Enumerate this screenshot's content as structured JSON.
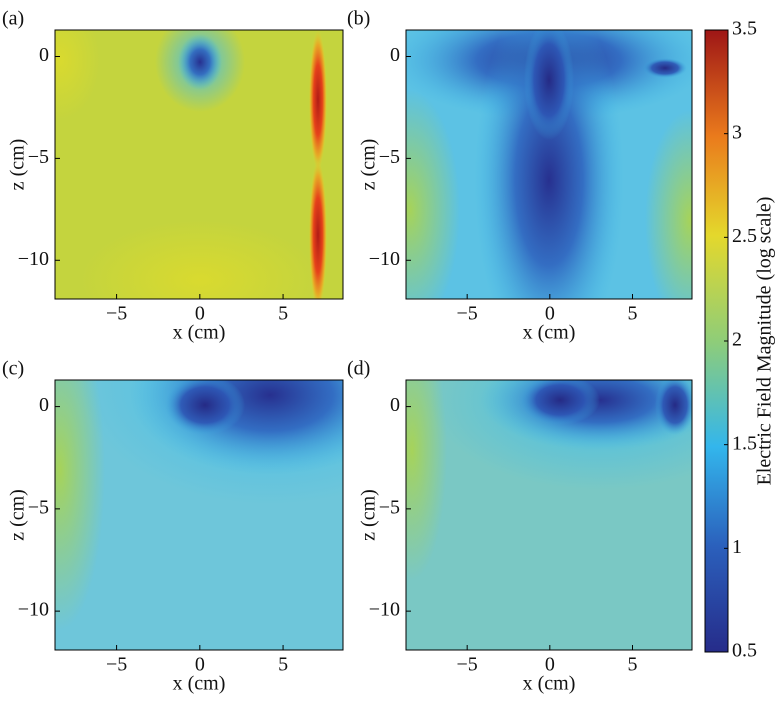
{
  "chart_data": [
    {
      "type": "contour",
      "panel_label": "(a)",
      "xlabel": "x (cm)",
      "ylabel": "z (cm)",
      "xlim": [
        -8.7,
        8.6
      ],
      "ylim": [
        -11.9,
        1.3
      ],
      "xticks": [
        {
          "value": -5,
          "label": "−5"
        },
        0,
        5
      ],
      "yticks": [
        0,
        {
          "value": -5,
          "label": "−5"
        },
        {
          "value": -10,
          "label": "−10"
        }
      ]
    },
    {
      "type": "contour",
      "panel_label": "(b)",
      "xlabel": "x (cm)",
      "ylabel": "z (cm)",
      "xlim": [
        -8.7,
        8.6
      ],
      "ylim": [
        -11.9,
        1.3
      ],
      "xticks": [
        {
          "value": -5,
          "label": "−5"
        },
        0,
        5
      ],
      "yticks": [
        0,
        {
          "value": -5,
          "label": "−5"
        },
        {
          "value": -10,
          "label": "−10"
        }
      ]
    },
    {
      "type": "contour",
      "panel_label": "(c)",
      "xlabel": "x (cm)",
      "ylabel": "z (cm)",
      "xlim": [
        -8.7,
        8.6
      ],
      "ylim": [
        -11.9,
        1.3
      ],
      "xticks": [
        {
          "value": -5,
          "label": "−5"
        },
        0,
        5
      ],
      "yticks": [
        0,
        {
          "value": -5,
          "label": "−5"
        },
        {
          "value": -10,
          "label": "−10"
        }
      ]
    },
    {
      "type": "contour",
      "panel_label": "(d)",
      "xlabel": "x (cm)",
      "ylabel": "z (cm)",
      "xlim": [
        -8.7,
        8.6
      ],
      "ylim": [
        -11.9,
        1.3
      ],
      "xticks": [
        {
          "value": -5,
          "label": "−5"
        },
        0,
        5
      ],
      "yticks": [
        0,
        {
          "value": -5,
          "label": "−5"
        },
        {
          "value": -10,
          "label": "−10"
        }
      ]
    },
    {
      "type": "colorbar",
      "label": "Electric Field Magnitude (log scale)",
      "clim": [
        0.5,
        3.5
      ],
      "ticks": [
        0.5,
        1,
        1.5,
        2,
        2.5,
        3,
        3.5
      ]
    }
  ]
}
